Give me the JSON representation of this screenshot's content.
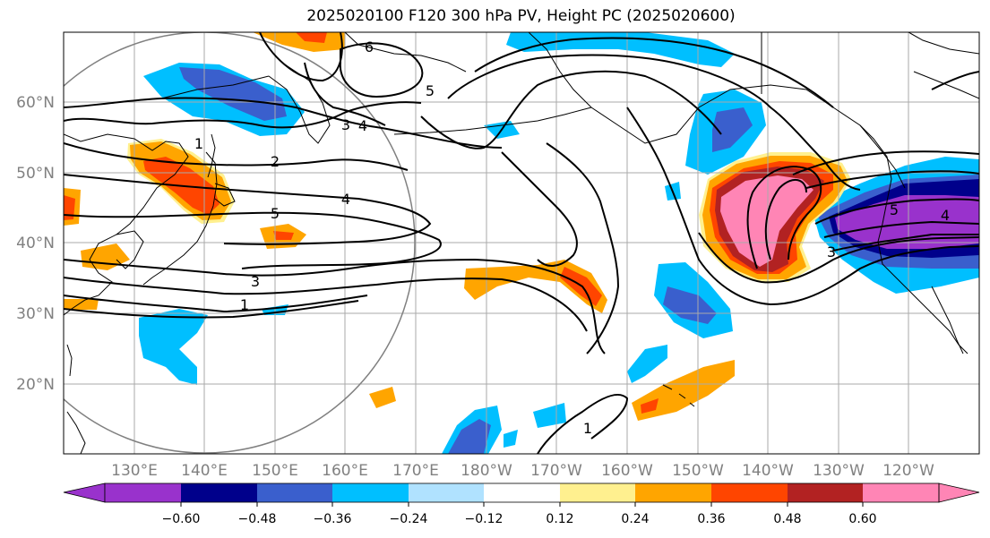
{
  "title": "2025020100 F120 300 hPa PV, Height PC (2025020600)",
  "map": {
    "lat_labels": [
      "60°N",
      "50°N",
      "40°N",
      "30°N",
      "20°N"
    ],
    "lon_labels": [
      "130°E",
      "140°E",
      "150°E",
      "160°E",
      "170°E",
      "180°W",
      "170°W",
      "160°W",
      "150°W",
      "140°W",
      "130°W",
      "120°W"
    ],
    "lon_range": [
      "120°E",
      "110°W"
    ],
    "lat_range": [
      "10°N",
      "70°N"
    ],
    "gridlines": true
  },
  "contours": {
    "variable": "Height PC",
    "levels_shown": [
      "1",
      "2",
      "3",
      "4",
      "5",
      "6"
    ],
    "labels": [
      {
        "text": "1",
        "near": "Japan west"
      },
      {
        "text": "2",
        "near": "Japan"
      },
      {
        "text": "3",
        "near": "Kamchatka"
      },
      {
        "text": "4",
        "near": "Kamchatka"
      },
      {
        "text": "4",
        "near": "Kuril"
      },
      {
        "text": "5",
        "near": "Japan"
      },
      {
        "text": "6",
        "near": "Bering Sea"
      },
      {
        "text": "5",
        "near": "Aleutians"
      },
      {
        "text": "3",
        "near": "south of Japan"
      },
      {
        "text": "1",
        "near": "south of Japan"
      },
      {
        "text": "3",
        "near": "NE Pacific"
      },
      {
        "text": "5",
        "near": "Pacific Northwest"
      },
      {
        "text": "4",
        "near": "Pacific Northwest"
      },
      {
        "text": "1",
        "near": "Hawaii region"
      }
    ]
  },
  "colorbar": {
    "variable": "300 hPa PV",
    "ticks": [
      "−0.60",
      "−0.48",
      "−0.36",
      "−0.24",
      "−0.12",
      "0.12",
      "0.24",
      "0.36",
      "0.48",
      "0.60"
    ],
    "colors": [
      "#9932cc",
      "#00008b",
      "#3a5fcd",
      "#00bfff",
      "#b0e2ff",
      "#ffffff",
      "#fff08f",
      "#ffa500",
      "#ff4500",
      "#b22222",
      "#ff85b5"
    ],
    "extend": "both"
  }
}
